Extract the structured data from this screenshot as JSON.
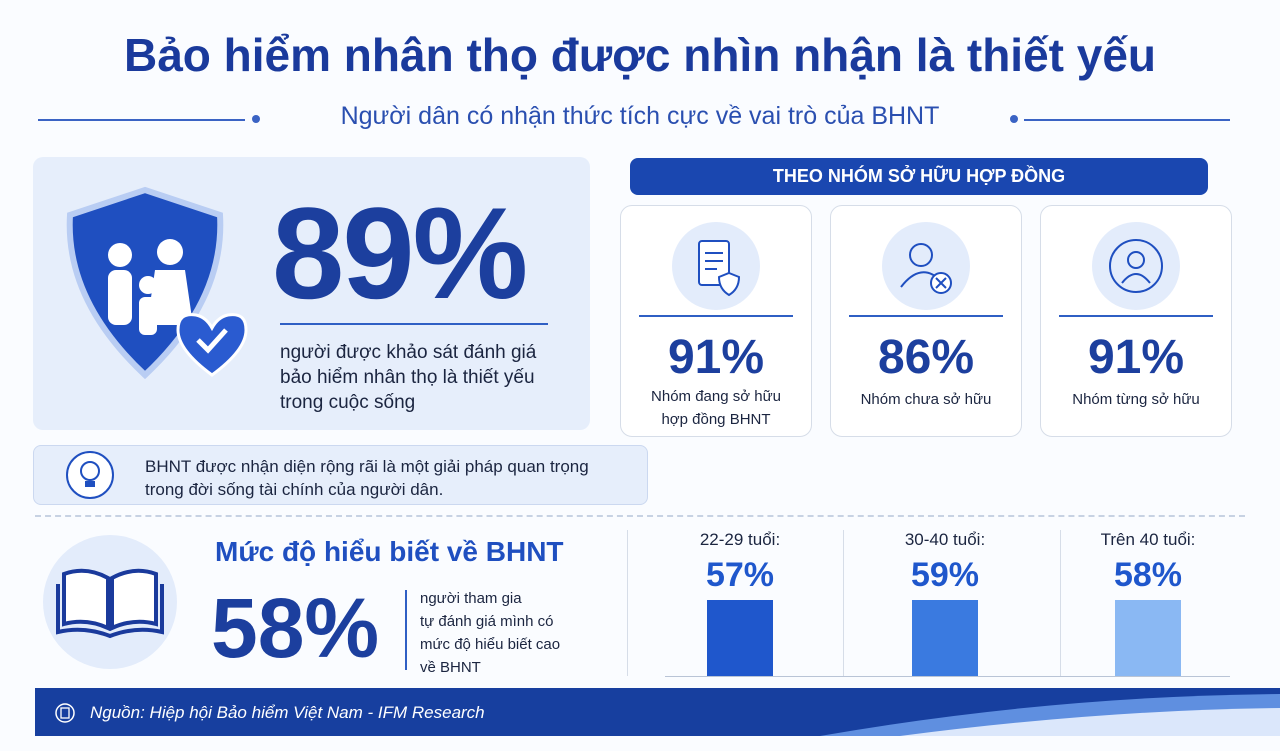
{
  "header": {
    "title": "Bảo hiểm nhân thọ được nhìn nhận là thiết yếu",
    "subtitle": "Người dân có nhận thức tích cực về vai trò của BHNT"
  },
  "highlight": {
    "value": "89%",
    "description": [
      "người được khảo sát đánh giá",
      "bảo hiểm nhân thọ là thiết yếu",
      "trong cuộc sống"
    ]
  },
  "note": [
    "BHNT được nhận diện rộng rãi là một giải pháp quan trọng",
    "trong đời sống tài chính của người dân."
  ],
  "groups": {
    "title": "THEO NHÓM SỞ HỮU HỢP ĐỒNG",
    "items": [
      {
        "value": "91%",
        "label": [
          "Nhóm đang sở hữu",
          "hợp đồng BHNT"
        ]
      },
      {
        "value": "86%",
        "label": [
          "Nhóm chưa sở hữu"
        ]
      },
      {
        "value": "91%",
        "label": [
          "Nhóm từng sở hữu"
        ]
      }
    ]
  },
  "knowledge": {
    "title": "Mức độ hiểu biết về BHNT",
    "value": "58%",
    "description": [
      "người tham gia",
      "tự đánh giá mình có",
      "mức độ hiểu biết cao",
      "về BHNT"
    ],
    "ages": [
      {
        "label": "22-29 tuổi:",
        "value": "57%"
      },
      {
        "label": "30-40 tuổi:",
        "value": "59%"
      },
      {
        "label": "Trên 40 tuổi:",
        "value": "58%"
      }
    ]
  },
  "footer": {
    "source": "Nguồn: Hiệp hội Bảo hiểm Việt Nam - IFM Research"
  }
}
